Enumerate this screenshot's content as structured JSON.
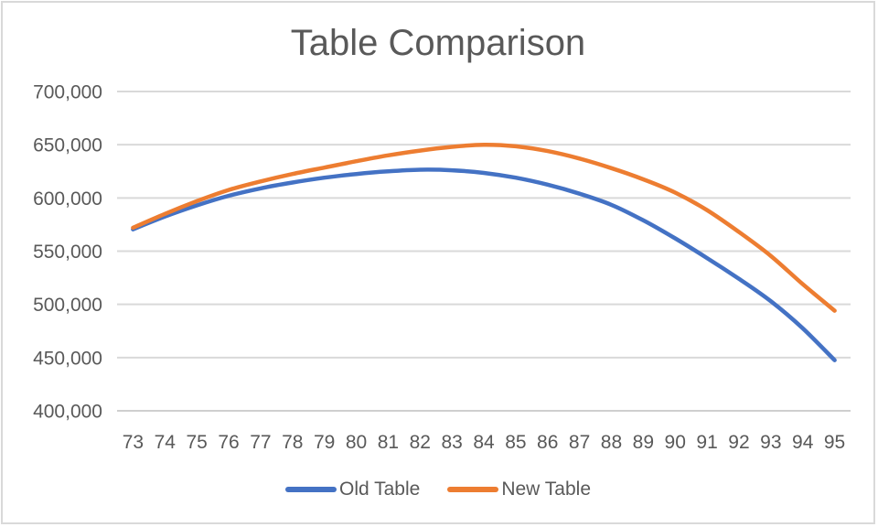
{
  "chart": {
    "title": "Table Comparison"
  },
  "chart_data": {
    "type": "line",
    "title": "Table Comparison",
    "xlabel": "",
    "ylabel": "",
    "x": [
      73,
      74,
      75,
      76,
      77,
      78,
      79,
      80,
      81,
      82,
      83,
      84,
      85,
      86,
      87,
      88,
      89,
      90,
      91,
      92,
      93,
      94,
      95
    ],
    "series": [
      {
        "name": "Old Table",
        "color": "#4472C4",
        "values": [
          570500,
          582500,
          593000,
          602000,
          609000,
          614500,
          619000,
          622500,
          625000,
          626500,
          626000,
          623500,
          619000,
          612500,
          604000,
          593500,
          579000,
          562000,
          543500,
          524000,
          503000,
          477500,
          447500
        ]
      },
      {
        "name": "New Table",
        "color": "#ED7D31",
        "values": [
          572000,
          585000,
          597000,
          607500,
          615500,
          622500,
          628500,
          634500,
          640000,
          644500,
          648000,
          650000,
          648500,
          644000,
          637000,
          628000,
          617500,
          605000,
          588500,
          568000,
          545500,
          519000,
          494000
        ]
      }
    ],
    "ylim": [
      400000,
      700000
    ],
    "yticks": [
      700000,
      650000,
      600000,
      550000,
      500000,
      450000,
      400000
    ],
    "ytick_labels": [
      "700,000",
      "650,000",
      "600,000",
      "550,000",
      "500,000",
      "450,000",
      "400,000"
    ],
    "grid": true,
    "smooth": true,
    "legend_position": "bottom",
    "colors": {
      "gridline": "#D9D9D9",
      "axis_line": "#CFCFCF",
      "text": "#595959",
      "border": "#D9D9D9",
      "background": "#FFFFFF"
    }
  }
}
